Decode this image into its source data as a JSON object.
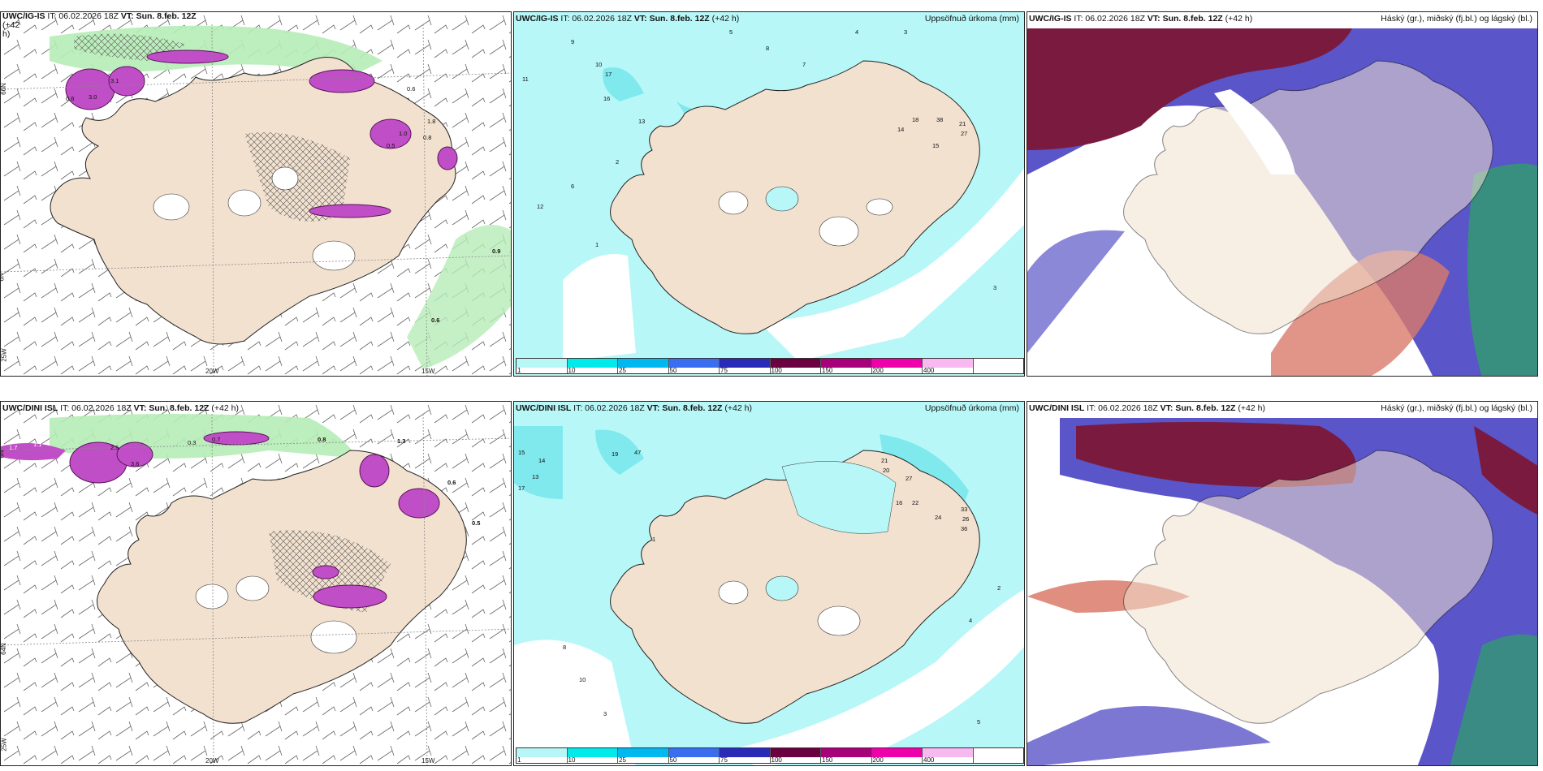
{
  "panels": [
    {
      "model": "UWC/IG-IS",
      "it": "IT: 06.02.2026 18Z",
      "vt_label": "VT:",
      "vt": "Sun. 8.feb. 12Z",
      "lead": "(+42",
      "lead2": "h)",
      "right_title": ""
    },
    {
      "model": "UWC/IG-IS",
      "it": "IT: 06.02.2026 18Z",
      "vt_label": "VT:",
      "vt": "Sun. 8.feb. 12Z",
      "lead": "(+42 h)",
      "right_title": "Uppsöfnuð úrkoma (mm)"
    },
    {
      "model": "UWC/IG-IS",
      "it": "IT: 06.02.2026 18Z",
      "vt_label": "VT:",
      "vt": "Sun. 8.feb. 12Z",
      "lead": "(+42 h)",
      "right_title": "Háský (gr.), miðský (fj.bl.) og lágský (bl.)"
    },
    {
      "model": "UWC/DINI ISL",
      "it": "IT: 06.02.2026 18Z",
      "vt_label": "VT:",
      "vt": "Sun. 8.feb. 12Z",
      "lead": "(+42 h)",
      "right_title": ""
    },
    {
      "model": "UWC/DINI ISL",
      "it": "IT: 06.02.2026 18Z",
      "vt_label": "VT:",
      "vt": "Sun. 8.feb. 12Z",
      "lead": "(+42 h)",
      "right_title": "Uppsöfnuð úrkoma (mm)"
    },
    {
      "model": "UWC/DINI ISL",
      "it": "IT: 06.02.2026 18Z",
      "vt_label": "VT:",
      "vt": "Sun. 8.feb. 12Z",
      "lead": "(+42 h)",
      "right_title": "Háský (gr.), miðský (fj.bl.) og lágský (bl.)"
    }
  ],
  "axes": {
    "lon_20": "20W",
    "lon_15": "15W",
    "lat_66": "66N",
    "lat_64": "64N",
    "lat_25": "25W",
    "lat_6N": "6N"
  },
  "colorbar": {
    "labels": [
      "1",
      "10",
      "25",
      "50",
      "75",
      "100",
      "150",
      "200",
      "400",
      ""
    ],
    "colors": [
      "#b7f7f7",
      "#00eaea",
      "#00b8f0",
      "#3a6ef0",
      "#2a2ab8",
      "#6a0040",
      "#a8007a",
      "#ee00aa",
      "#f8b8f0",
      "#ffffff"
    ]
  },
  "colors": {
    "land": "#f2e1cf",
    "precip_light": "#b7f7f7",
    "precip_mid": "#7fe9ee",
    "snow_purple": "#c04ec6",
    "rain_green": "#b6ecb6",
    "cloud_high": "#7a1a3e",
    "cloud_mid": "#5a55c8",
    "cloud_low": "#d97a6a"
  },
  "precip_top": [
    {
      "v": "9",
      "cls": "a"
    },
    {
      "v": "5",
      "cls": "a"
    },
    {
      "v": "8",
      "cls": "a"
    },
    {
      "v": "7",
      "cls": "a"
    },
    {
      "v": "4",
      "cls": "a"
    },
    {
      "v": "3",
      "cls": "a"
    },
    {
      "v": "11",
      "cls": "a"
    },
    {
      "v": "10",
      "cls": "a"
    },
    {
      "v": "17",
      "cls": "a"
    },
    {
      "v": "13",
      "cls": "a"
    },
    {
      "v": "16",
      "cls": "a"
    },
    {
      "v": "12",
      "cls": "a"
    },
    {
      "v": "38",
      "cls": "a"
    },
    {
      "v": "27",
      "cls": "a"
    },
    {
      "v": "21",
      "cls": "a"
    },
    {
      "v": "15",
      "cls": "a"
    },
    {
      "v": "14",
      "cls": "a"
    },
    {
      "v": "18",
      "cls": "a"
    },
    {
      "v": "6",
      "cls": "a"
    },
    {
      "v": "2",
      "cls": "a"
    },
    {
      "v": "1",
      "cls": "a"
    },
    {
      "v": "3",
      "cls": "a"
    }
  ],
  "precip_bottom": [
    {
      "v": "15",
      "cls": "a"
    },
    {
      "v": "14",
      "cls": "a"
    },
    {
      "v": "13",
      "cls": "a"
    },
    {
      "v": "17",
      "cls": "a"
    },
    {
      "v": "19",
      "cls": "a"
    },
    {
      "v": "47",
      "cls": "a"
    },
    {
      "v": "21",
      "cls": "a"
    },
    {
      "v": "20",
      "cls": "a"
    },
    {
      "v": "27",
      "cls": "a"
    },
    {
      "v": "22",
      "cls": "a"
    },
    {
      "v": "33",
      "cls": "a"
    },
    {
      "v": "36",
      "cls": "a"
    },
    {
      "v": "26",
      "cls": "a"
    },
    {
      "v": "24",
      "cls": "a"
    },
    {
      "v": "16",
      "cls": "a"
    },
    {
      "v": "10",
      "cls": "a"
    },
    {
      "v": "8",
      "cls": "a"
    },
    {
      "v": "4",
      "cls": "a"
    },
    {
      "v": "3",
      "cls": "a"
    },
    {
      "v": "5",
      "cls": "a"
    },
    {
      "v": "2",
      "cls": "a"
    },
    {
      "v": "1",
      "cls": "a"
    }
  ],
  "snow_top": [
    "0.6",
    "3.0",
    "3.1",
    "0.5",
    "0.6",
    "0.8",
    "1.0",
    "0.9",
    "0.7",
    "1.8"
  ],
  "snow_bottom": [
    "1.7",
    "1.1",
    "2.5",
    "3.6",
    "0.8",
    "0.6",
    "1.3",
    "0.5",
    "0.7",
    "0.3"
  ]
}
